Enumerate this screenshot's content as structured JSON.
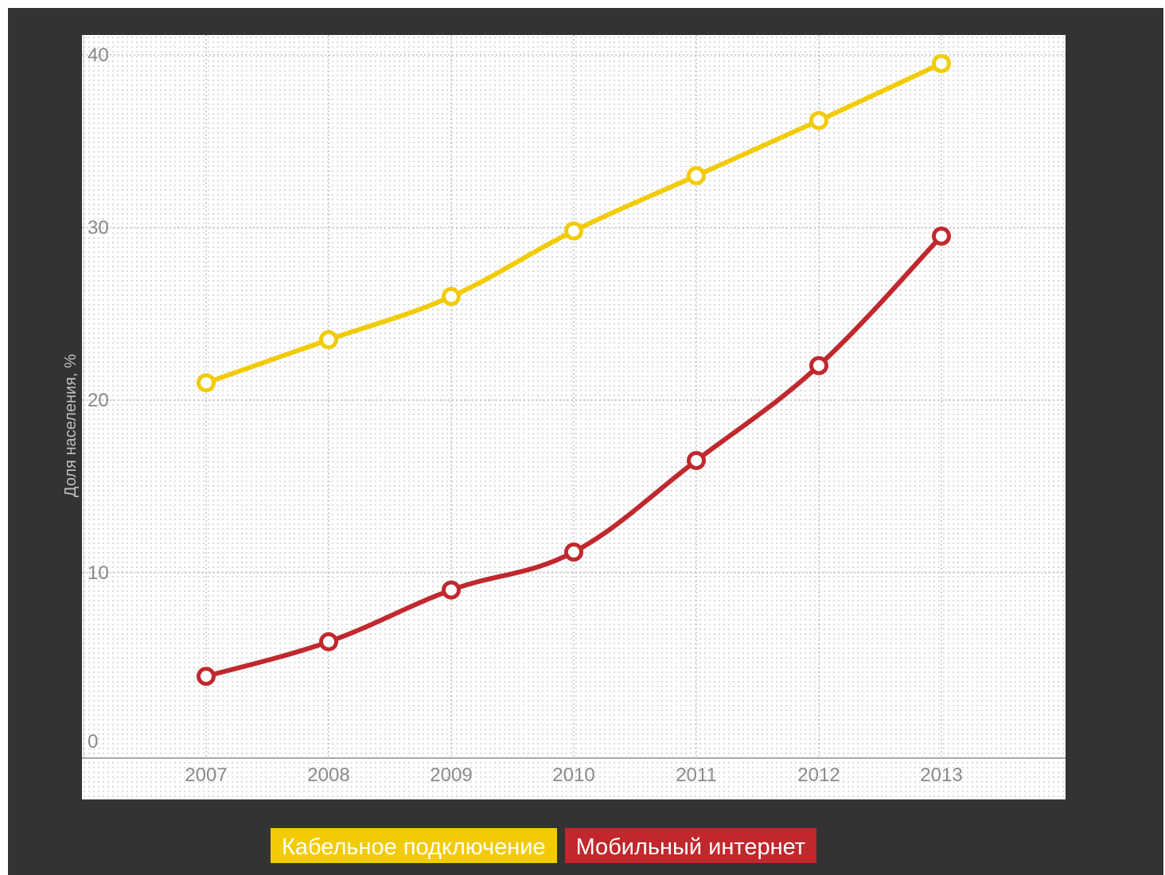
{
  "chart_data": {
    "type": "line",
    "title": "",
    "ylabel": "Доля населения, %",
    "xlabel": "",
    "categories": [
      "2007",
      "2008",
      "2009",
      "2010",
      "2011",
      "2012",
      "2013"
    ],
    "y_ticks": [
      "0",
      "10",
      "20",
      "30",
      "40"
    ],
    "ylim": [
      0,
      40
    ],
    "grid": true,
    "legend_position": "bottom",
    "series": [
      {
        "name": "Кабельное подключение",
        "color": "#f2cb05",
        "values": [
          21,
          23.5,
          26,
          29.8,
          33,
          36.2,
          39.5
        ]
      },
      {
        "name": "Мобильный интернет",
        "color": "#c0282d",
        "values": [
          4,
          6,
          9,
          11.2,
          16.5,
          22,
          29.5
        ]
      }
    ]
  },
  "colors": {
    "background": "#333333",
    "plot_background": "#ffffff",
    "grid": "#b5b5b5"
  }
}
